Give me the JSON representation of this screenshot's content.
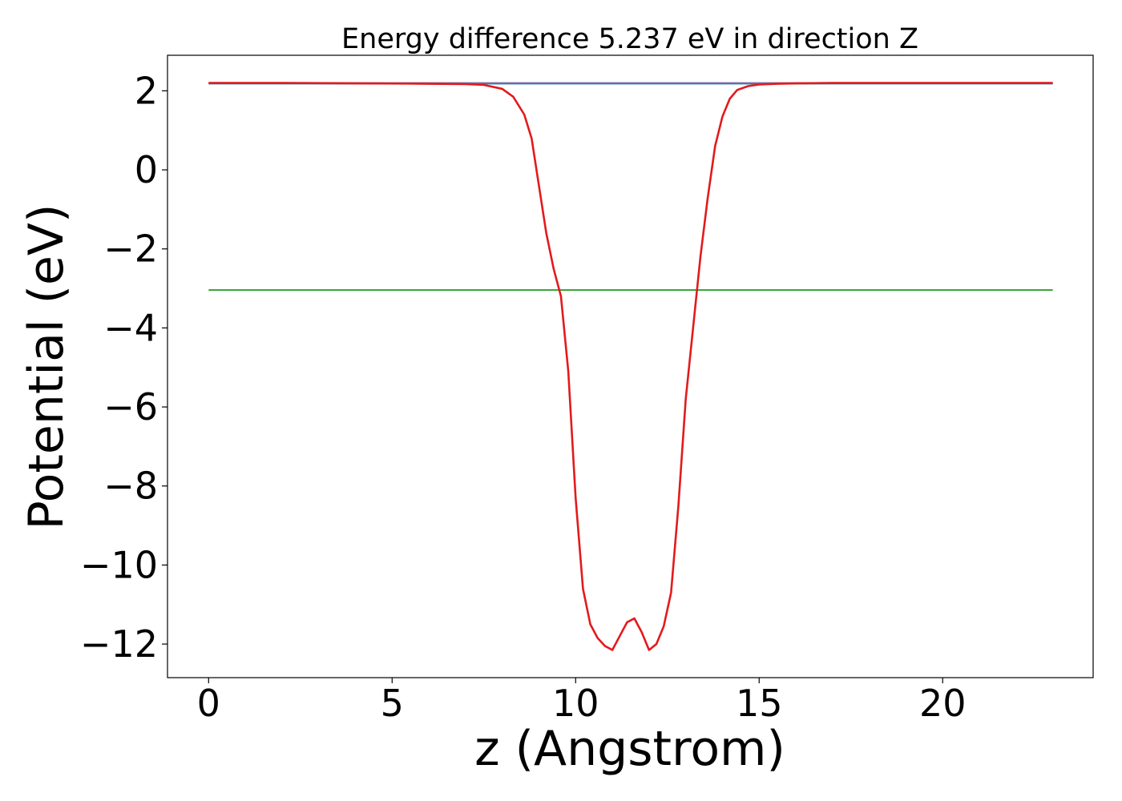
{
  "chart_data": {
    "type": "line",
    "title": "Energy difference 5.237 eV in direction Z",
    "xlabel": "z (Angstrom)",
    "ylabel": "Potential (eV)",
    "xlim": [
      -1.12,
      24.1
    ],
    "ylim": [
      -12.85,
      2.9
    ],
    "xticks": [
      0,
      5,
      10,
      15,
      20
    ],
    "xtick_labels": [
      "0",
      "5",
      "10",
      "15",
      "20"
    ],
    "yticks": [
      2,
      0,
      -2,
      -4,
      -6,
      -8,
      -10,
      -12
    ],
    "ytick_labels": [
      "2",
      "−2",
      "−4",
      "−6",
      "−8",
      "−10",
      "−12"
    ],
    "ytick_labels_full": [
      "2",
      "0",
      "−2",
      "−4",
      "−6",
      "−8",
      "−10",
      "−12"
    ],
    "grid": false,
    "series": [
      {
        "color": "#1f77b4",
        "x": [
          0,
          23
        ],
        "y": [
          2.18,
          2.18
        ]
      },
      {
        "color": "#2ca02c",
        "x": [
          0,
          23
        ],
        "y": [
          -3.04,
          -3.04
        ]
      },
      {
        "color": "#7f6fa8",
        "x": [
          0,
          23
        ],
        "y": [
          2.2,
          2.2
        ]
      },
      {
        "color": "#e31a1c",
        "x": [
          0,
          2,
          4,
          6,
          7,
          7.5,
          8,
          8.3,
          8.6,
          8.8,
          9.0,
          9.2,
          9.4,
          9.6,
          9.8,
          10.0,
          10.2,
          10.4,
          10.6,
          10.8,
          11.0,
          11.2,
          11.4,
          11.6,
          11.8,
          12.0,
          12.2,
          12.4,
          12.6,
          12.8,
          13.0,
          13.2,
          13.4,
          13.6,
          13.8,
          14.0,
          14.2,
          14.4,
          14.7,
          15.0,
          15.5,
          16,
          17,
          19,
          21,
          23
        ],
        "y": [
          2.2,
          2.2,
          2.19,
          2.18,
          2.17,
          2.15,
          2.05,
          1.85,
          1.4,
          0.8,
          -0.4,
          -1.6,
          -2.5,
          -3.2,
          -5.1,
          -8.3,
          -10.6,
          -11.5,
          -11.85,
          -12.05,
          -12.15,
          -11.8,
          -11.45,
          -11.35,
          -11.7,
          -12.15,
          -12.0,
          -11.55,
          -10.7,
          -8.5,
          -5.8,
          -4.0,
          -2.2,
          -0.7,
          0.6,
          1.35,
          1.8,
          2.02,
          2.12,
          2.16,
          2.18,
          2.19,
          2.2,
          2.2,
          2.2,
          2.2
        ]
      }
    ]
  }
}
